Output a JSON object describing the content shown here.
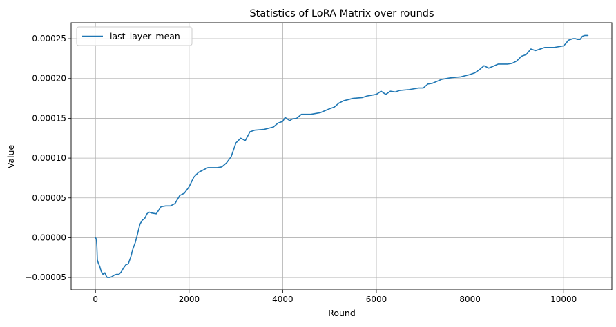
{
  "chart_data": {
    "type": "line",
    "title": "Statistics of LoRA Matrix over rounds",
    "xlabel": "Round",
    "ylabel": "Value",
    "xlim": [
      -520,
      11030
    ],
    "ylim": [
      -6.55e-05,
      0.00027
    ],
    "x_ticks": [
      0,
      2000,
      4000,
      6000,
      8000,
      10000
    ],
    "x_tick_labels": [
      "0",
      "2000",
      "4000",
      "6000",
      "8000",
      "10000"
    ],
    "y_ticks": [
      -5e-05,
      0,
      5e-05,
      0.0001,
      0.00015,
      0.0002,
      0.00025
    ],
    "y_tick_labels": [
      "−0.00005",
      "0.00000",
      "0.00005",
      "0.00010",
      "0.00015",
      "0.00020",
      "0.00025"
    ],
    "grid": true,
    "legend_position": "top-left",
    "series": [
      {
        "name": "last_layer_mean",
        "color": "#1f77b4",
        "x": [
          0,
          20,
          30,
          40,
          60,
          90,
          120,
          160,
          200,
          220,
          250,
          300,
          350,
          400,
          450,
          500,
          550,
          600,
          650,
          700,
          750,
          800,
          850,
          900,
          950,
          1000,
          1050,
          1100,
          1150,
          1200,
          1300,
          1400,
          1500,
          1600,
          1700,
          1800,
          1900,
          2000,
          2100,
          2200,
          2300,
          2400,
          2500,
          2600,
          2700,
          2800,
          2900,
          3000,
          3100,
          3200,
          3300,
          3400,
          3600,
          3800,
          3900,
          4000,
          4050,
          4100,
          4150,
          4200,
          4300,
          4400,
          4500,
          4600,
          4800,
          5000,
          5100,
          5200,
          5300,
          5500,
          5700,
          5800,
          5900,
          6000,
          6100,
          6200,
          6300,
          6400,
          6500,
          6700,
          6900,
          7000,
          7100,
          7200,
          7400,
          7600,
          7800,
          8000,
          8100,
          8200,
          8300,
          8400,
          8600,
          8800,
          8900,
          9000,
          9100,
          9200,
          9300,
          9400,
          9500,
          9600,
          9800,
          10000,
          10050,
          10100,
          10200,
          10250,
          10300,
          10350,
          10400,
          10450,
          10520
        ],
        "y": [
          0.0,
          -2e-06,
          -1.2e-05,
          -2.8e-05,
          -3.2e-05,
          -3.6e-05,
          -4.2e-05,
          -4.6e-05,
          -4.4e-05,
          -4.7e-05,
          -5e-05,
          -5e-05,
          -4.9e-05,
          -4.7e-05,
          -4.6e-05,
          -4.6e-05,
          -4.3e-05,
          -3.8e-05,
          -3.4e-05,
          -3.3e-05,
          -2.5e-05,
          -1.4e-05,
          -6e-06,
          5e-06,
          1.7e-05,
          2.2e-05,
          2.4e-05,
          3e-05,
          3.2e-05,
          3.1e-05,
          3e-05,
          3.9e-05,
          4e-05,
          4e-05,
          4.3e-05,
          5.3e-05,
          5.6e-05,
          6.4e-05,
          7.6e-05,
          8.2e-05,
          8.5e-05,
          8.8e-05,
          8.8e-05,
          8.8e-05,
          8.9e-05,
          9.4e-05,
          0.000102,
          0.000119,
          0.000125,
          0.000122,
          0.000133,
          0.000135,
          0.000136,
          0.000139,
          0.000144,
          0.000146,
          0.000151,
          0.000149,
          0.000147,
          0.000149,
          0.00015,
          0.000155,
          0.000155,
          0.000155,
          0.000157,
          0.000162,
          0.000164,
          0.000169,
          0.000172,
          0.000175,
          0.000176,
          0.000178,
          0.000179,
          0.00018,
          0.000184,
          0.00018,
          0.000184,
          0.000183,
          0.000185,
          0.000186,
          0.000188,
          0.000188,
          0.000193,
          0.000194,
          0.000199,
          0.000201,
          0.000202,
          0.000205,
          0.000207,
          0.000211,
          0.000216,
          0.000213,
          0.000218,
          0.000218,
          0.000219,
          0.000222,
          0.000228,
          0.00023,
          0.000237,
          0.000235,
          0.000237,
          0.000239,
          0.000239,
          0.000241,
          0.000244,
          0.000248,
          0.00025,
          0.00025,
          0.000249,
          0.000249,
          0.000253,
          0.000254,
          0.000254
        ]
      }
    ]
  }
}
